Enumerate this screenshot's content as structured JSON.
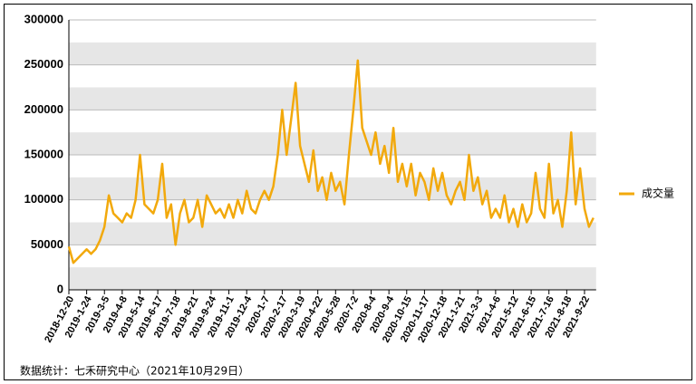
{
  "chart_data": {
    "type": "line",
    "categories": [
      "2018-12-20",
      null,
      null,
      null,
      "2019-1-24",
      null,
      null,
      null,
      "2019-3-5",
      null,
      null,
      null,
      "2019-4-8",
      null,
      null,
      null,
      "2019-5-14",
      null,
      null,
      null,
      "2019-6-17",
      null,
      null,
      null,
      "2019-7-18",
      null,
      null,
      null,
      "2019-8-21",
      null,
      null,
      null,
      "2019-9-24",
      null,
      null,
      null,
      "2019-11-1",
      null,
      null,
      null,
      "2019-12-4",
      null,
      null,
      null,
      "2020-1-7",
      null,
      null,
      null,
      "2020-2-17",
      null,
      null,
      null,
      "2020-3-19",
      null,
      null,
      null,
      "2020-4-22",
      null,
      null,
      null,
      "2020-5-28",
      null,
      null,
      null,
      "2020-7-2",
      null,
      null,
      null,
      "2020-8-4",
      null,
      null,
      null,
      "2020-9-4",
      null,
      null,
      null,
      "2020-10-15",
      null,
      null,
      null,
      "2020-11-17",
      null,
      null,
      null,
      "2020-12-18",
      null,
      null,
      null,
      "2021-1-21",
      null,
      null,
      null,
      "2021-3-3",
      null,
      null,
      null,
      "2021-4-6",
      null,
      null,
      null,
      "2021-5-12",
      null,
      null,
      null,
      "2021-6-15",
      null,
      null,
      null,
      "2021-7-16",
      null,
      null,
      null,
      "2021-8-18",
      null,
      null,
      null,
      "2021-9-22",
      null,
      null
    ],
    "series": [
      {
        "name": "成交量",
        "color": "#f2a90c",
        "values": [
          48000,
          30000,
          35000,
          40000,
          45000,
          40000,
          45000,
          55000,
          70000,
          105000,
          85000,
          80000,
          75000,
          85000,
          80000,
          100000,
          150000,
          95000,
          90000,
          85000,
          100000,
          140000,
          80000,
          95000,
          50000,
          85000,
          100000,
          75000,
          80000,
          100000,
          70000,
          105000,
          95000,
          85000,
          90000,
          80000,
          95000,
          80000,
          100000,
          85000,
          110000,
          90000,
          85000,
          100000,
          110000,
          100000,
          115000,
          150000,
          200000,
          150000,
          190000,
          230000,
          160000,
          140000,
          120000,
          155000,
          110000,
          125000,
          100000,
          130000,
          110000,
          120000,
          95000,
          150000,
          200000,
          255000,
          180000,
          165000,
          150000,
          175000,
          140000,
          160000,
          130000,
          180000,
          120000,
          140000,
          115000,
          140000,
          105000,
          130000,
          120000,
          100000,
          135000,
          110000,
          130000,
          105000,
          95000,
          110000,
          120000,
          100000,
          150000,
          110000,
          125000,
          95000,
          110000,
          80000,
          90000,
          80000,
          105000,
          75000,
          90000,
          70000,
          95000,
          75000,
          85000,
          130000,
          90000,
          80000,
          140000,
          85000,
          100000,
          70000,
          110000,
          175000,
          95000,
          135000,
          90000,
          70000,
          80000
        ]
      }
    ],
    "ylim": [
      0,
      300000
    ],
    "yticks": [
      0,
      50000,
      100000,
      150000,
      200000,
      250000,
      300000
    ],
    "grid": true,
    "legend": "right",
    "note": "数据统计：七禾研究中心（2021年10月29日）"
  }
}
